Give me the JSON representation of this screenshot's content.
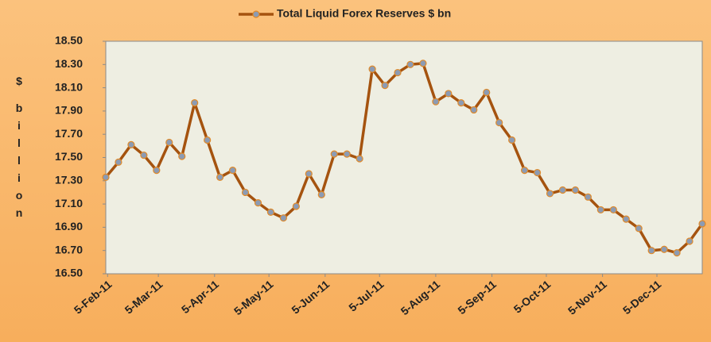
{
  "chart_data": {
    "type": "line",
    "y_label": "$ billion",
    "legend": "top",
    "x": [
      "2011-02-04",
      "2011-02-11",
      "2011-02-18",
      "2011-02-25",
      "2011-03-04",
      "2011-03-11",
      "2011-03-18",
      "2011-03-25",
      "2011-04-01",
      "2011-04-08",
      "2011-04-15",
      "2011-04-22",
      "2011-04-29",
      "2011-05-06",
      "2011-05-13",
      "2011-05-20",
      "2011-05-27",
      "2011-06-03",
      "2011-06-10",
      "2011-06-17",
      "2011-06-24",
      "2011-07-01",
      "2011-07-08",
      "2011-07-15",
      "2011-07-22",
      "2011-07-29",
      "2011-08-05",
      "2011-08-12",
      "2011-08-19",
      "2011-08-26",
      "2011-09-02",
      "2011-09-09",
      "2011-09-16",
      "2011-09-23",
      "2011-09-30",
      "2011-10-07",
      "2011-10-14",
      "2011-10-21",
      "2011-10-28",
      "2011-11-04",
      "2011-11-11",
      "2011-11-18",
      "2011-11-25",
      "2011-12-02",
      "2011-12-09",
      "2011-12-16",
      "2011-12-23",
      "2011-12-30"
    ],
    "series": [
      {
        "name": "Total Liquid Forex Reserves $ bn",
        "color": "#a5530f",
        "marker_color": "#8c9bb3",
        "values": [
          17.33,
          17.46,
          17.61,
          17.52,
          17.39,
          17.63,
          17.51,
          17.97,
          17.65,
          17.33,
          17.39,
          17.2,
          17.11,
          17.03,
          16.98,
          17.08,
          17.36,
          17.18,
          17.53,
          17.53,
          17.49,
          18.26,
          18.12,
          18.23,
          18.3,
          18.31,
          17.98,
          18.05,
          17.97,
          17.91,
          18.06,
          17.8,
          17.65,
          17.39,
          17.37,
          17.19,
          17.22,
          17.22,
          17.16,
          17.05,
          17.05,
          16.97,
          16.89,
          16.7,
          16.71,
          16.68,
          16.78,
          16.93
        ]
      }
    ],
    "xlim": [
      "2011-02-04",
      "2011-12-30"
    ],
    "xticks": [
      {
        "value": "2011-02-05",
        "label": "5-Feb-11"
      },
      {
        "value": "2011-03-05",
        "label": "5-Mar-11"
      },
      {
        "value": "2011-04-05",
        "label": "5-Apr-11"
      },
      {
        "value": "2011-05-05",
        "label": "5-May-11"
      },
      {
        "value": "2011-06-05",
        "label": "5-Jun-11"
      },
      {
        "value": "2011-07-05",
        "label": "5-Jul-11"
      },
      {
        "value": "2011-08-05",
        "label": "5-Aug-11"
      },
      {
        "value": "2011-09-05",
        "label": "5-Sep-11"
      },
      {
        "value": "2011-10-05",
        "label": "5-Oct-11"
      },
      {
        "value": "2011-11-05",
        "label": "5-Nov-11"
      },
      {
        "value": "2011-12-05",
        "label": "5-Dec-11"
      }
    ],
    "ylim": [
      16.5,
      18.5
    ],
    "yticks": [
      {
        "value": 16.5,
        "label": "16.50"
      },
      {
        "value": 16.7,
        "label": "16.70"
      },
      {
        "value": 16.9,
        "label": "16.90"
      },
      {
        "value": 17.1,
        "label": "17.10"
      },
      {
        "value": 17.3,
        "label": "17.30"
      },
      {
        "value": 17.5,
        "label": "17.50"
      },
      {
        "value": 17.7,
        "label": "17.70"
      },
      {
        "value": 17.9,
        "label": "17.90"
      },
      {
        "value": 18.1,
        "label": "18.10"
      },
      {
        "value": 18.3,
        "label": "18.30"
      },
      {
        "value": 18.5,
        "label": "18.50"
      }
    ]
  }
}
